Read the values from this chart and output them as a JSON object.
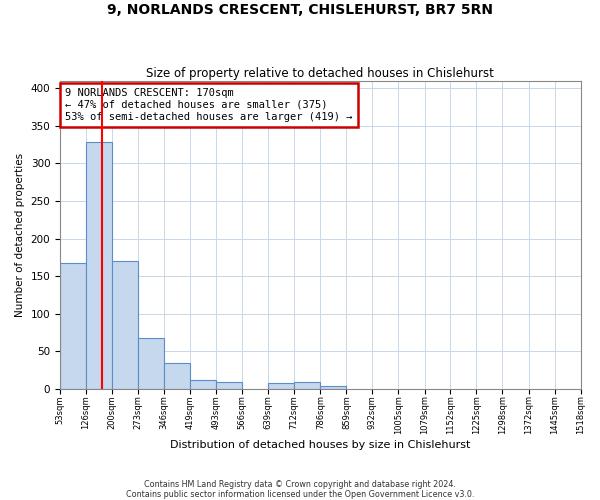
{
  "title": "9, NORLANDS CRESCENT, CHISLEHURST, BR7 5RN",
  "subtitle": "Size of property relative to detached houses in Chislehurst",
  "xlabel": "Distribution of detached houses by size in Chislehurst",
  "ylabel": "Number of detached properties",
  "bin_edges": [
    53,
    126,
    200,
    273,
    346,
    419,
    493,
    566,
    639,
    712,
    786,
    859,
    932,
    1005,
    1079,
    1152,
    1225,
    1298,
    1372,
    1445,
    1518
  ],
  "bar_heights": [
    168,
    328,
    170,
    68,
    34,
    12,
    10,
    0,
    8,
    10,
    4,
    0,
    0,
    0,
    0,
    0,
    0,
    0,
    0,
    0
  ],
  "bar_color": "#c5d8ee",
  "bar_edge_color": "#5b8dc8",
  "red_line_x": 170,
  "annotation_text": "9 NORLANDS CRESCENT: 170sqm\n← 47% of detached houses are smaller (375)\n53% of semi-detached houses are larger (419) →",
  "annotation_box_color": "#ffffff",
  "annotation_box_edge": "#cc0000",
  "footer": "Contains HM Land Registry data © Crown copyright and database right 2024.\nContains public sector information licensed under the Open Government Licence v3.0.",
  "ylim": [
    0,
    410
  ],
  "yticks": [
    0,
    50,
    100,
    150,
    200,
    250,
    300,
    350,
    400
  ],
  "background_color": "#ffffff",
  "grid_color": "#c8d8e8"
}
